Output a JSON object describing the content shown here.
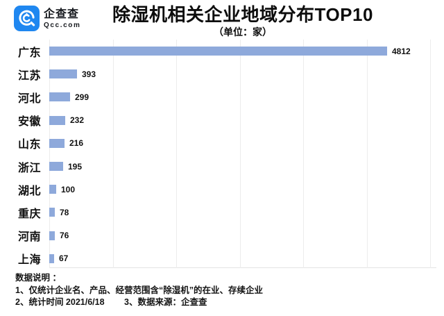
{
  "header": {
    "logo": {
      "name": "企查查",
      "subtext": "Qcc.com",
      "brand_color": "#1f87f0",
      "icon": "qcc-logo-icon"
    },
    "title": "除湿机相关企业地域分布TOP10",
    "subtitle": "（单位：家）"
  },
  "chart_data": {
    "type": "bar",
    "orientation": "horizontal",
    "title": "除湿机相关企业地域分布TOP10",
    "subtitle": "（单位：家）",
    "unit": "家",
    "categories": [
      "广东",
      "江苏",
      "河北",
      "安徽",
      "山东",
      "浙江",
      "湖北",
      "重庆",
      "河南",
      "上海"
    ],
    "values": [
      4812,
      393,
      299,
      232,
      216,
      195,
      100,
      78,
      76,
      67
    ],
    "bar_color": "#8EA9DB",
    "value_label_color": "#111111",
    "grid": true,
    "gridline_color": "#ececec",
    "xlim": [
      0,
      5500
    ],
    "legend": "none",
    "value_labels": true
  },
  "footer": {
    "lines": {
      "0": "数据说明 ：",
      "1": "1、仅统计企业名、产品、经营范围含“除湿机”的在业、存续企业",
      "2": "2、统计时间 2021/6/18　　 3、数据来源：企查查"
    }
  }
}
